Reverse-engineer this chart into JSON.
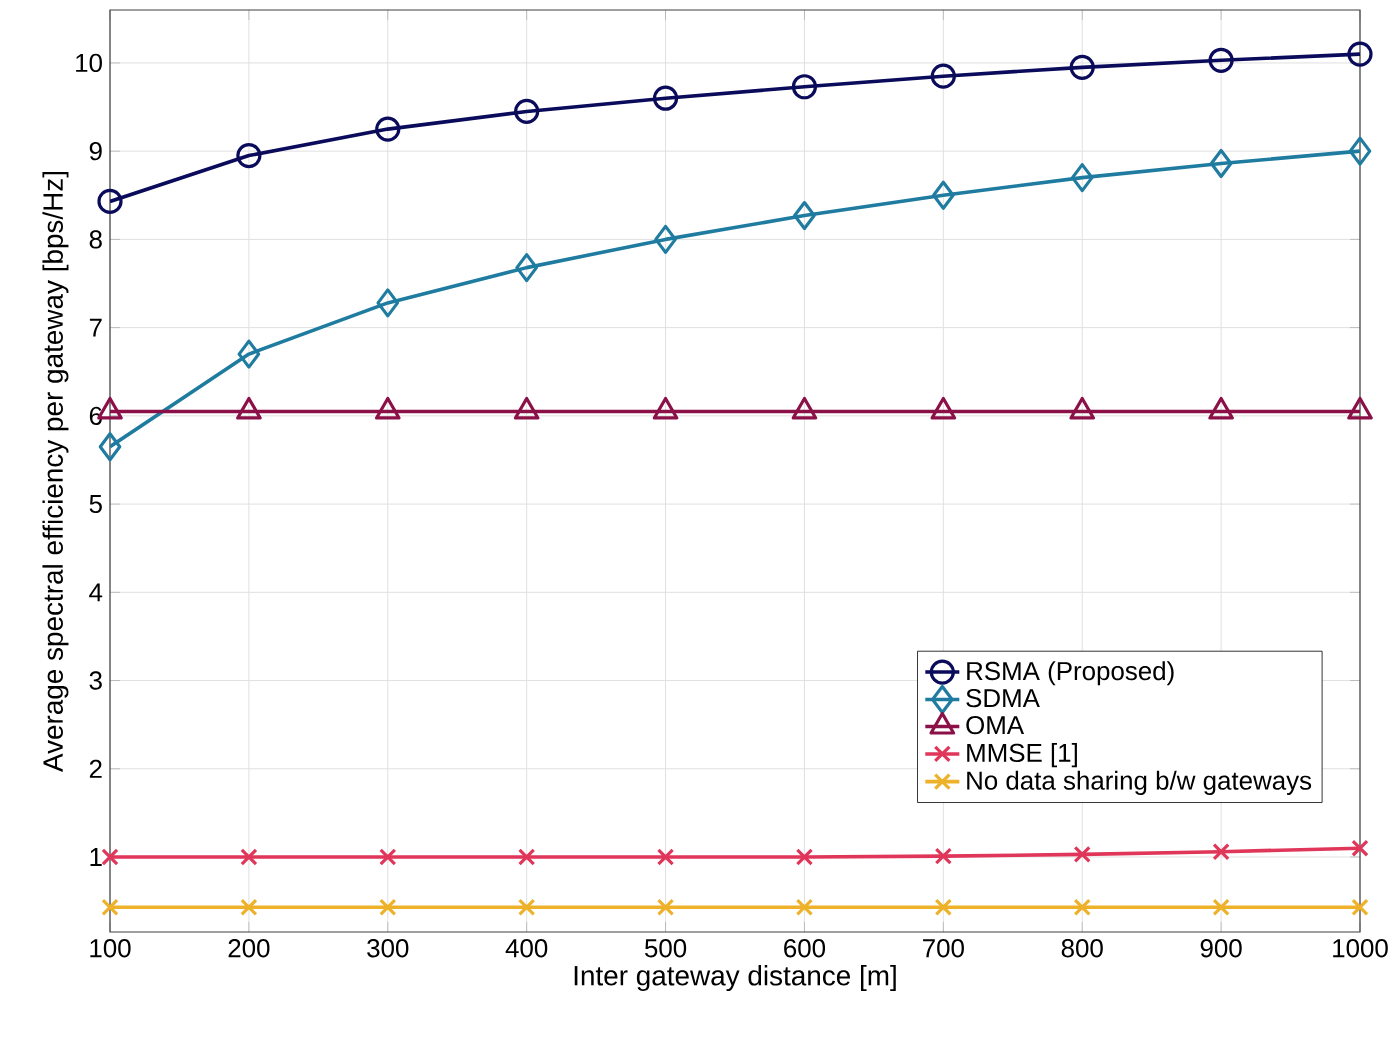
{
  "chart_data": {
    "type": "line",
    "xlabel": "Inter gateway distance [m]",
    "ylabel": "Average spectral efficiency per gateway [bps/Hz]",
    "x": [
      100,
      200,
      300,
      400,
      500,
      600,
      700,
      800,
      900,
      1000
    ],
    "series": [
      {
        "name": "RSMA (Proposed)",
        "color": "#0b0b5c",
        "marker": "circle",
        "values": [
          8.43,
          8.95,
          9.25,
          9.45,
          9.6,
          9.73,
          9.85,
          9.95,
          10.03,
          10.1
        ]
      },
      {
        "name": "SDMA",
        "color": "#1f7ca0",
        "marker": "diamond",
        "values": [
          5.65,
          6.7,
          7.28,
          7.68,
          8.0,
          8.27,
          8.5,
          8.7,
          8.86,
          9.0
        ]
      },
      {
        "name": "OMA",
        "color": "#8c1048",
        "marker": "triangle",
        "values": [
          6.05,
          6.05,
          6.05,
          6.05,
          6.05,
          6.05,
          6.05,
          6.05,
          6.05,
          6.05
        ]
      },
      {
        "name": "MMSE [1]",
        "color": "#e0365a",
        "marker": "cross",
        "values": [
          1.0,
          1.0,
          1.0,
          1.0,
          1.0,
          1.0,
          1.01,
          1.03,
          1.06,
          1.1
        ]
      },
      {
        "name": "No data sharing b/w gateways",
        "color": "#edb12a",
        "marker": "cross",
        "values": [
          0.43,
          0.43,
          0.43,
          0.43,
          0.43,
          0.43,
          0.43,
          0.43,
          0.43,
          0.43
        ]
      }
    ],
    "xlim": [
      100,
      1000
    ],
    "ylim": [
      0.15,
      10.6
    ],
    "xticks": [
      100,
      200,
      300,
      400,
      500,
      600,
      700,
      800,
      900,
      1000
    ],
    "yticks": [
      1,
      2,
      3,
      4,
      5,
      6,
      7,
      8,
      9,
      10
    ],
    "grid": true,
    "legend": "bottom right",
    "line_style": "solid"
  }
}
